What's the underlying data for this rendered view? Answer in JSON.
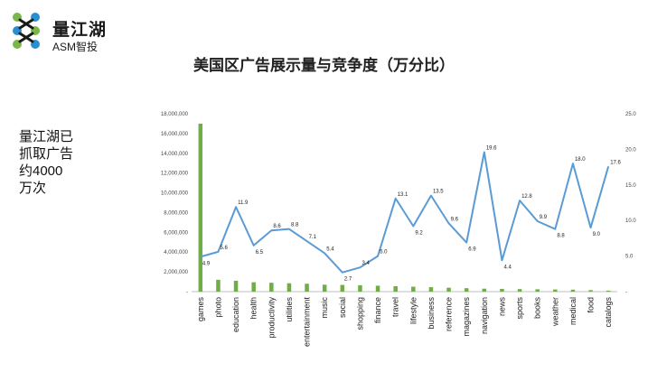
{
  "header": {
    "logo_cn": "量江湖",
    "logo_en": "ASM智投",
    "colors": {
      "logo_green": "#7ab648",
      "logo_blue": "#2a8fd0"
    }
  },
  "side_note": "量江湖已\n抓取广告\n约4000\n万次",
  "chart_data": {
    "type": "bar",
    "title": "美国区广告展示量与竞争度（万分比）",
    "categories": [
      "games",
      "photo",
      "education",
      "health",
      "productivity",
      "utilities",
      "entertainment",
      "music",
      "social",
      "shopping",
      "finance",
      "travel",
      "lifestyle",
      "business",
      "reference",
      "magazines",
      "navigation",
      "news",
      "sports",
      "books",
      "weather",
      "medical",
      "food",
      "catalogs"
    ],
    "series": [
      {
        "type": "bar",
        "axis": "left",
        "color": "#70ad47",
        "values": [
          17000000,
          1200000,
          1100000,
          950000,
          900000,
          850000,
          800000,
          700000,
          680000,
          650000,
          600000,
          550000,
          500000,
          450000,
          400000,
          350000,
          300000,
          280000,
          260000,
          240000,
          220000,
          200000,
          150000,
          100000
        ]
      },
      {
        "type": "line",
        "axis": "right",
        "color": "#5b9bd5",
        "values": [
          4.9,
          5.6,
          11.9,
          6.5,
          8.6,
          8.8,
          7.1,
          5.4,
          2.7,
          3.4,
          5.0,
          13.1,
          9.2,
          13.5,
          9.6,
          6.9,
          19.6,
          4.4,
          12.8,
          9.9,
          8.8,
          18.0,
          9.0,
          17.6
        ]
      }
    ],
    "left_axis": {
      "ylim": [
        0,
        18000000
      ],
      "ticks": [
        0,
        2000000,
        4000000,
        6000000,
        8000000,
        10000000,
        12000000,
        14000000,
        16000000,
        18000000
      ],
      "tick_labels": [
        "-",
        "2,000,000",
        "4,000,000",
        "6,000,000",
        "8,000,000",
        "10,000,000",
        "12,000,000",
        "14,000,000",
        "16,000,000",
        "18,000,000"
      ]
    },
    "right_axis": {
      "ylim": [
        0,
        25
      ],
      "ticks": [
        0,
        5,
        10,
        15,
        20,
        25
      ],
      "tick_labels": [
        "-",
        "5.0",
        "10.0",
        "15.0",
        "20.0",
        "25.0"
      ]
    },
    "grid": false,
    "legend": "none"
  }
}
